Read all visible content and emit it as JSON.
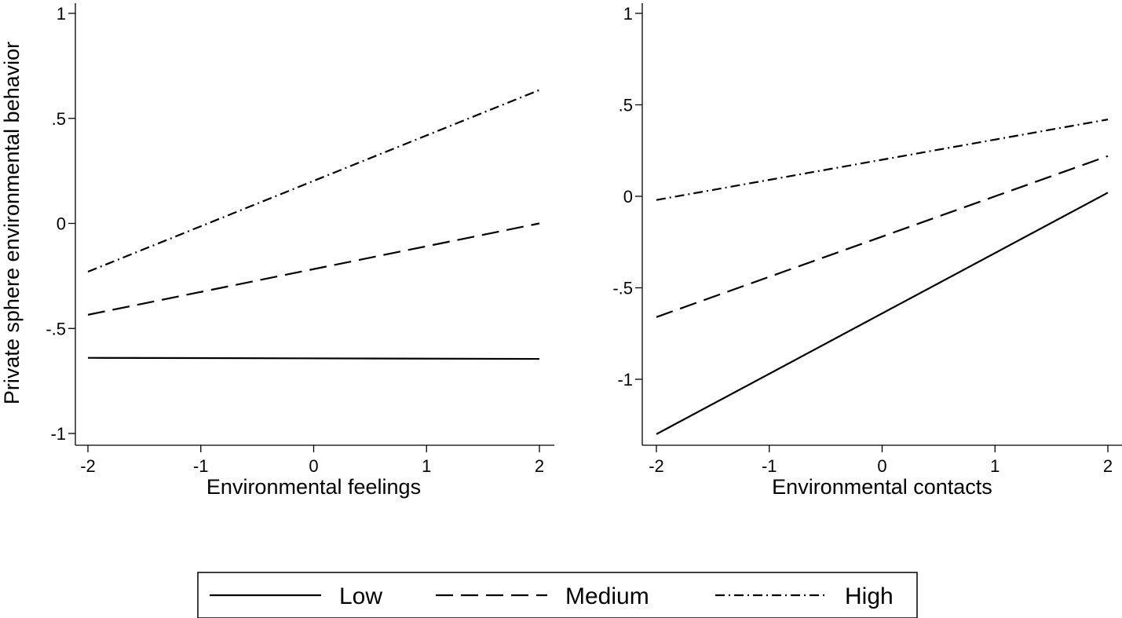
{
  "chart_data": [
    {
      "type": "line",
      "id": "left",
      "xlabel": "Environmental feelings",
      "ylabel": "Private sphere environmental behavior",
      "xlim": [
        -2,
        2
      ],
      "ylim": [
        -1,
        1
      ],
      "xticks": [
        -2,
        -1,
        0,
        1,
        2
      ],
      "xtick_labels": [
        "-2",
        "-1",
        "0",
        "1",
        "2"
      ],
      "yticks": [
        -1,
        -0.5,
        0,
        0.5,
        1
      ],
      "ytick_labels": [
        "-1",
        "-.5",
        "0",
        ".5",
        "1"
      ],
      "x": [
        -2,
        2
      ],
      "series": [
        {
          "name": "Low",
          "style": "solid",
          "values": [
            -0.64,
            -0.645
          ]
        },
        {
          "name": "Medium",
          "style": "dashed",
          "values": [
            -0.435,
            0.0
          ]
        },
        {
          "name": "High",
          "style": "dashdot",
          "values": [
            -0.23,
            0.635
          ]
        }
      ]
    },
    {
      "type": "line",
      "id": "right",
      "xlabel": "Environmental contacts",
      "ylabel": "",
      "xlim": [
        -2,
        2
      ],
      "ylim": [
        -1.3,
        1
      ],
      "xticks": [
        -2,
        -1,
        0,
        1,
        2
      ],
      "xtick_labels": [
        "-2",
        "-1",
        "0",
        "1",
        "2"
      ],
      "yticks": [
        -1,
        -0.5,
        0,
        0.5,
        1
      ],
      "ytick_labels": [
        "-1",
        "-.5",
        "0",
        ".5",
        "1"
      ],
      "x": [
        -2,
        2
      ],
      "series": [
        {
          "name": "Low",
          "style": "solid",
          "values": [
            -1.3,
            0.02
          ]
        },
        {
          "name": "Medium",
          "style": "dashed",
          "values": [
            -0.66,
            0.22
          ]
        },
        {
          "name": "High",
          "style": "dashdot",
          "values": [
            -0.02,
            0.42
          ]
        }
      ]
    }
  ],
  "legend": {
    "position": "bottom-center",
    "items": [
      {
        "label": "Low",
        "style": "solid"
      },
      {
        "label": "Medium",
        "style": "dashed"
      },
      {
        "label": "High",
        "style": "dashdot"
      }
    ]
  }
}
